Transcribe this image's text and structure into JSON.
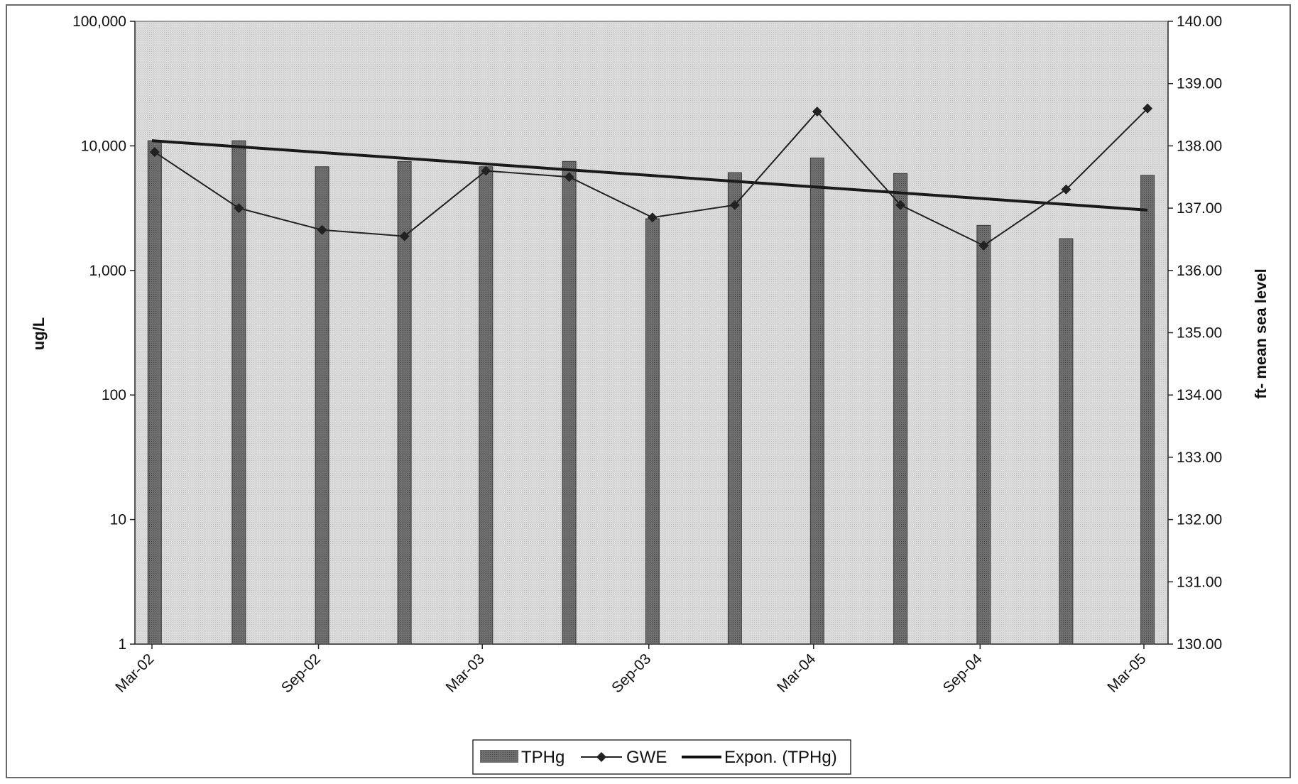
{
  "chart_data": {
    "type": "bar",
    "y_left": {
      "label": "ug/L",
      "scale": "log",
      "range": [
        1,
        100000
      ],
      "ticks": [
        "1",
        "10",
        "100",
        "1,000",
        "10,000",
        "100,000"
      ]
    },
    "y_right": {
      "label": "ft- mean sea level",
      "range": [
        130,
        140
      ],
      "ticks": [
        "130.00",
        "131.00",
        "132.00",
        "133.00",
        "134.00",
        "135.00",
        "136.00",
        "137.00",
        "138.00",
        "139.00",
        "140.00"
      ]
    },
    "x_axis": {
      "range": [
        "2002-03-01",
        "2005-03-01"
      ],
      "ticks": [
        {
          "label": "Mar-02",
          "date": "2002-03-01"
        },
        {
          "label": "Sep-02",
          "date": "2002-09-01"
        },
        {
          "label": "Mar-03",
          "date": "2003-03-01"
        },
        {
          "label": "Sep-03",
          "date": "2003-09-01"
        },
        {
          "label": "Mar-04",
          "date": "2004-03-01"
        },
        {
          "label": "Sep-04",
          "date": "2004-09-01"
        },
        {
          "label": "Mar-05",
          "date": "2005-03-01"
        }
      ]
    },
    "series": [
      {
        "name": "TPHg",
        "type": "bar",
        "axis": "left",
        "color": "#6b6b6b",
        "points": [
          {
            "date": "2002-03-04",
            "value": 11000
          },
          {
            "date": "2002-06-05",
            "value": 11000
          },
          {
            "date": "2002-09-05",
            "value": 6800
          },
          {
            "date": "2002-12-05",
            "value": 7500
          },
          {
            "date": "2003-03-05",
            "value": 6800
          },
          {
            "date": "2003-06-05",
            "value": 7500
          },
          {
            "date": "2003-09-05",
            "value": 2600
          },
          {
            "date": "2003-12-05",
            "value": 6100
          },
          {
            "date": "2004-03-05",
            "value": 8000
          },
          {
            "date": "2004-06-05",
            "value": 6000
          },
          {
            "date": "2004-09-05",
            "value": 2300
          },
          {
            "date": "2004-12-05",
            "value": 1800
          },
          {
            "date": "2005-03-05",
            "value": 5800
          }
        ]
      },
      {
        "name": "GWE",
        "type": "line",
        "axis": "right",
        "color": "#222222",
        "marker": "diamond",
        "points": [
          {
            "date": "2002-03-04",
            "value": 137.9
          },
          {
            "date": "2002-06-05",
            "value": 137.0
          },
          {
            "date": "2002-09-05",
            "value": 136.65
          },
          {
            "date": "2002-12-05",
            "value": 136.55
          },
          {
            "date": "2003-03-05",
            "value": 137.6
          },
          {
            "date": "2003-06-05",
            "value": 137.5
          },
          {
            "date": "2003-09-05",
            "value": 136.85
          },
          {
            "date": "2003-12-05",
            "value": 137.05
          },
          {
            "date": "2004-03-05",
            "value": 138.55
          },
          {
            "date": "2004-06-05",
            "value": 137.05
          },
          {
            "date": "2004-09-05",
            "value": 136.4
          },
          {
            "date": "2004-12-05",
            "value": 137.3
          },
          {
            "date": "2005-03-05",
            "value": 138.6
          }
        ]
      },
      {
        "name": "Expon. (TPHg)",
        "type": "trendline",
        "axis": "left",
        "color": "#1a1a1a",
        "points": [
          {
            "date": "2002-03-01",
            "value": 11000
          },
          {
            "date": "2005-03-05",
            "value": 3050
          }
        ]
      }
    ],
    "legend": {
      "position": "bottom-center",
      "entries": [
        "TPHg",
        "GWE",
        "Expon. (TPHg)"
      ]
    },
    "grid": false,
    "plot_background": "#d9d9d9"
  }
}
